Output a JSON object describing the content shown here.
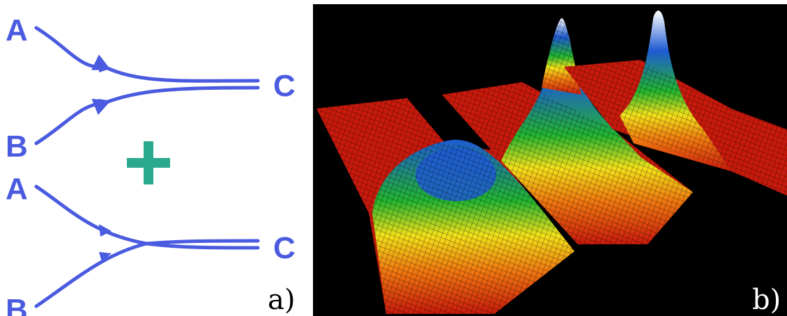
{
  "panel_a": {
    "label": "a)",
    "colors": {
      "lines": "#4a5be0",
      "plus": "#2aa98e"
    },
    "top_reaction": {
      "input1": "A",
      "input2": "B",
      "output": "C"
    },
    "plus_sign": "+",
    "bottom_reaction": {
      "input1": "A",
      "input2": "B",
      "output": "C"
    }
  },
  "panel_b": {
    "label": "b)",
    "colors": {
      "background": "#000000",
      "low": "#c81a0c",
      "mid": "#f2e11a",
      "green": "#22b530",
      "high": "#1e5ad2",
      "peak": "#ffffff"
    }
  }
}
